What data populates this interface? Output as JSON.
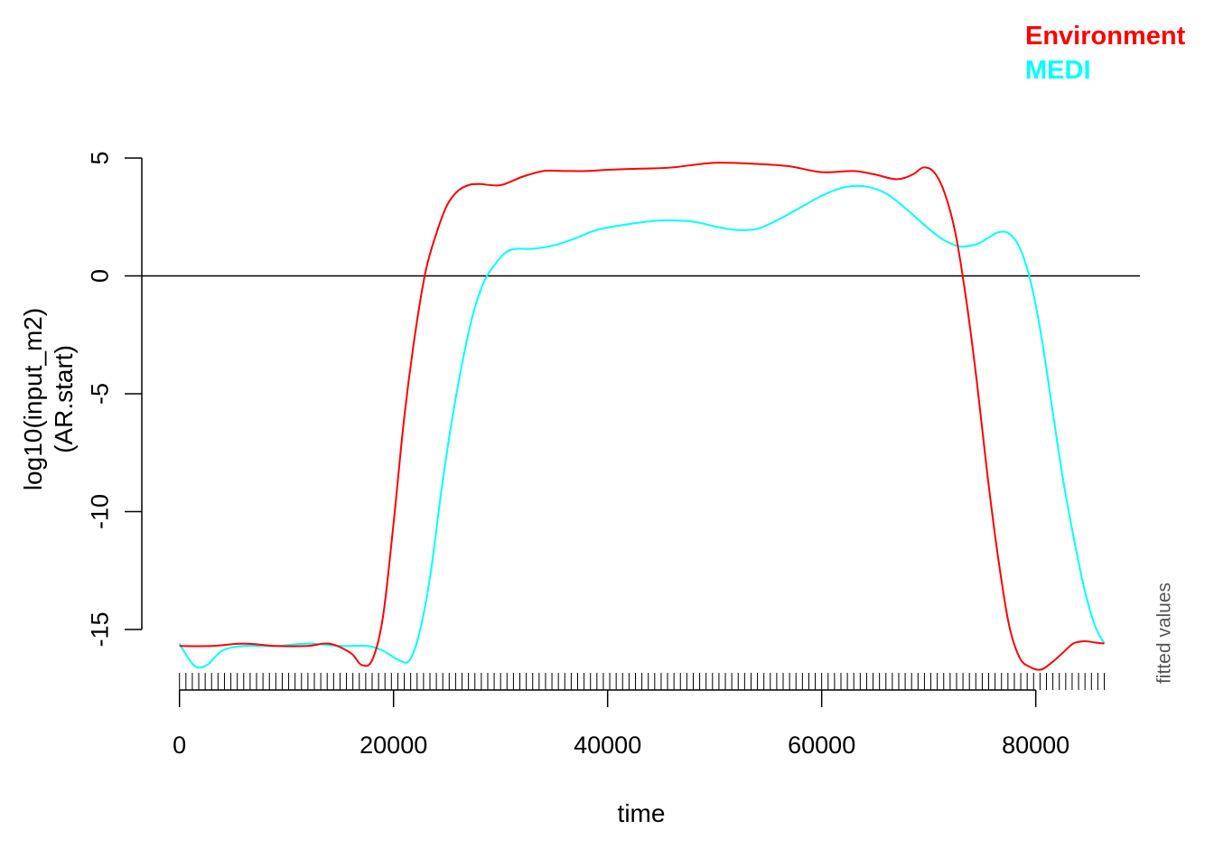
{
  "chart_data": {
    "type": "line",
    "xlabel": "time",
    "ylabel_lines": [
      "log10(input_m2)",
      "(AR.start)"
    ],
    "side_note": "fitted values",
    "xlim": [
      0,
      86400
    ],
    "ylim": [
      -17.5,
      5.5
    ],
    "x_ticks": [
      0,
      20000,
      40000,
      60000,
      80000
    ],
    "x_tick_labels": [
      "0",
      "20000",
      "40000",
      "60000",
      "80000"
    ],
    "y_ticks": [
      5,
      0,
      -5,
      -10,
      -15
    ],
    "y_tick_labels": [
      "5",
      "0",
      "-5",
      "-10",
      "-15"
    ],
    "reference_line_y": 0,
    "rug": {
      "from": 0,
      "to": 86400,
      "step": 600
    },
    "legend": {
      "placement": "top-right"
    },
    "series": [
      {
        "name": "Environment",
        "color": "#ff0000",
        "x": [
          0,
          3000,
          6000,
          9000,
          12000,
          14000,
          16000,
          17000,
          18000,
          19000,
          20000,
          21000,
          22000,
          23000,
          24000,
          25000,
          26000,
          27000,
          28000,
          30000,
          32000,
          34000,
          36000,
          38000,
          40000,
          43000,
          46000,
          50000,
          54000,
          57000,
          60000,
          63000,
          65000,
          67000,
          68500,
          69500,
          70500,
          71500,
          72500,
          73500,
          74500,
          75500,
          76500,
          77500,
          78500,
          79500,
          80500,
          81500,
          82500,
          83500,
          84500,
          85500,
          86400
        ],
        "y": [
          -15.7,
          -15.7,
          -15.6,
          -15.7,
          -15.7,
          -15.6,
          -16.0,
          -16.5,
          -16.3,
          -14.5,
          -10.5,
          -6.0,
          -2.5,
          0.2,
          1.8,
          3.0,
          3.6,
          3.85,
          3.9,
          3.85,
          4.2,
          4.45,
          4.45,
          4.45,
          4.5,
          4.55,
          4.6,
          4.8,
          4.75,
          4.65,
          4.4,
          4.45,
          4.3,
          4.1,
          4.3,
          4.6,
          4.4,
          3.5,
          1.8,
          -1.0,
          -4.5,
          -8.5,
          -12.0,
          -14.8,
          -16.2,
          -16.6,
          -16.7,
          -16.4,
          -16.0,
          -15.6,
          -15.5,
          -15.55,
          -15.6
        ]
      },
      {
        "name": "MEDI",
        "color": "#00ffff",
        "x": [
          0,
          800,
          1600,
          2600,
          4000,
          6000,
          9000,
          12000,
          15000,
          17500,
          19000,
          20500,
          21500,
          22500,
          23500,
          24500,
          25500,
          26500,
          27500,
          28500,
          29500,
          30500,
          31500,
          33000,
          35000,
          37000,
          39000,
          42000,
          45000,
          48000,
          50000,
          52000,
          54000,
          56000,
          58000,
          60000,
          62000,
          64000,
          66000,
          68000,
          70000,
          71500,
          73000,
          74500,
          75500,
          76500,
          77500,
          78500,
          79500,
          80500,
          81500,
          82500,
          83500,
          84500,
          85500,
          86400
        ],
        "y": [
          -15.6,
          -16.2,
          -16.6,
          -16.5,
          -15.9,
          -15.7,
          -15.7,
          -15.6,
          -15.7,
          -15.7,
          -15.9,
          -16.3,
          -16.3,
          -15.0,
          -12.5,
          -9.0,
          -6.0,
          -3.5,
          -1.5,
          -0.2,
          0.5,
          1.0,
          1.15,
          1.15,
          1.3,
          1.6,
          1.95,
          2.2,
          2.35,
          2.3,
          2.1,
          1.95,
          2.0,
          2.4,
          2.9,
          3.4,
          3.75,
          3.8,
          3.5,
          2.8,
          2.0,
          1.5,
          1.25,
          1.35,
          1.6,
          1.85,
          1.8,
          1.2,
          -0.2,
          -2.5,
          -5.5,
          -8.5,
          -11.0,
          -13.2,
          -14.8,
          -15.6
        ]
      }
    ]
  }
}
